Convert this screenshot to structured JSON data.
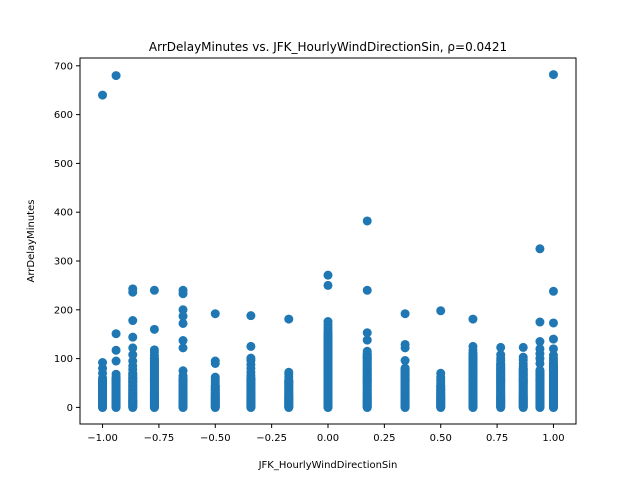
{
  "chart_data": {
    "type": "scatter",
    "title": "ArrDelayMinutes vs. JFK_HourlyWindDirectionSin, ρ=0.0421",
    "xlabel": "JFK_HourlyWindDirectionSin",
    "ylabel": "ArrDelayMinutes",
    "xlim": [
      -1.1,
      1.1
    ],
    "ylim": [
      -34,
      716
    ],
    "xticks": [
      -1.0,
      -0.75,
      -0.5,
      -0.25,
      0.0,
      0.25,
      0.5,
      0.75,
      1.0
    ],
    "xtick_labels": [
      "−1.00",
      "−0.75",
      "−0.50",
      "−0.25",
      "0.00",
      "0.25",
      "0.50",
      "0.75",
      "1.00"
    ],
    "yticks": [
      0,
      100,
      200,
      300,
      400,
      500,
      600,
      700
    ],
    "ytick_labels": [
      "0",
      "100",
      "200",
      "300",
      "400",
      "500",
      "600",
      "700"
    ],
    "grid": false,
    "legend": "none",
    "marker_color": "#1f77b4",
    "columns": [
      {
        "x": -1.0,
        "values": [
          0,
          2,
          4,
          6,
          8,
          10,
          12,
          15,
          18,
          21,
          24,
          28,
          32,
          36,
          40,
          45,
          50,
          55,
          60,
          70,
          80,
          92,
          640
        ],
        "dense_max": 55
      },
      {
        "x": -0.94,
        "values": [
          0,
          2,
          4,
          6,
          8,
          10,
          13,
          16,
          19,
          22,
          26,
          30,
          35,
          40,
          45,
          50,
          55,
          62,
          68,
          95,
          117,
          151,
          680
        ],
        "dense_max": 60
      },
      {
        "x": -0.866,
        "values": [
          0,
          2,
          4,
          6,
          8,
          10,
          12,
          15,
          18,
          22,
          26,
          30,
          35,
          40,
          45,
          52,
          60,
          70,
          78,
          85,
          95,
          108,
          122,
          144,
          178,
          236,
          243
        ],
        "dense_max": 70
      },
      {
        "x": -0.77,
        "values": [
          0,
          2,
          4,
          6,
          8,
          10,
          12,
          15,
          18,
          22,
          26,
          30,
          35,
          40,
          45,
          50,
          55,
          62,
          70,
          78,
          86,
          93,
          100,
          106,
          113,
          118,
          160,
          240
        ],
        "dense_max": 100
      },
      {
        "x": -0.643,
        "values": [
          0,
          2,
          4,
          6,
          8,
          10,
          12,
          15,
          18,
          22,
          26,
          30,
          35,
          40,
          45,
          52,
          58,
          65,
          75,
          122,
          137,
          172,
          187,
          200,
          233,
          240
        ],
        "dense_max": 60
      },
      {
        "x": -0.5,
        "values": [
          0,
          2,
          4,
          6,
          8,
          10,
          13,
          16,
          19,
          22,
          26,
          30,
          35,
          40,
          45,
          50,
          56,
          62,
          90,
          95,
          192
        ],
        "dense_max": 45
      },
      {
        "x": -0.342,
        "values": [
          0,
          2,
          4,
          6,
          8,
          10,
          13,
          16,
          20,
          25,
          30,
          35,
          42,
          50,
          58,
          65,
          72,
          80,
          88,
          96,
          101,
          125,
          188
        ],
        "dense_max": 60
      },
      {
        "x": -0.174,
        "values": [
          0,
          2,
          4,
          6,
          8,
          10,
          13,
          16,
          19,
          22,
          26,
          30,
          35,
          40,
          45,
          50,
          55,
          62,
          68,
          72,
          181
        ],
        "dense_max": 55
      },
      {
        "x": 0.0,
        "values": [
          0,
          2,
          4,
          6,
          8,
          10,
          12,
          15,
          18,
          22,
          26,
          30,
          35,
          40,
          45,
          50,
          55,
          60,
          65,
          70,
          75,
          80,
          85,
          90,
          95,
          100,
          105,
          110,
          115,
          120,
          125,
          130,
          135,
          140,
          145,
          150,
          155,
          160,
          165,
          170,
          176,
          250,
          271
        ],
        "dense_max": 150
      },
      {
        "x": 0.174,
        "values": [
          0,
          2,
          4,
          6,
          8,
          10,
          12,
          15,
          18,
          22,
          26,
          30,
          35,
          40,
          45,
          50,
          55,
          60,
          65,
          70,
          75,
          80,
          85,
          90,
          95,
          100,
          105,
          110,
          115,
          138,
          153,
          240,
          382
        ],
        "dense_max": 110
      },
      {
        "x": 0.342,
        "values": [
          0,
          2,
          4,
          6,
          8,
          10,
          12,
          15,
          18,
          22,
          26,
          30,
          35,
          40,
          45,
          50,
          55,
          60,
          65,
          70,
          75,
          80,
          96,
          122,
          129,
          192
        ],
        "dense_max": 80
      },
      {
        "x": 0.5,
        "values": [
          0,
          2,
          4,
          6,
          8,
          10,
          13,
          16,
          19,
          22,
          26,
          30,
          35,
          40,
          45,
          50,
          56,
          62,
          70,
          198
        ],
        "dense_max": 45
      },
      {
        "x": 0.643,
        "values": [
          0,
          2,
          4,
          6,
          8,
          10,
          12,
          15,
          18,
          22,
          26,
          30,
          35,
          40,
          45,
          50,
          55,
          60,
          65,
          70,
          75,
          80,
          85,
          90,
          95,
          100,
          110,
          117,
          125,
          181
        ],
        "dense_max": 110
      },
      {
        "x": 0.766,
        "values": [
          0,
          2,
          4,
          6,
          8,
          10,
          13,
          16,
          19,
          22,
          26,
          30,
          35,
          40,
          45,
          50,
          55,
          60,
          65,
          70,
          75,
          80,
          85,
          90,
          95,
          100,
          108,
          123
        ],
        "dense_max": 90
      },
      {
        "x": 0.866,
        "values": [
          0,
          2,
          4,
          6,
          8,
          10,
          13,
          16,
          19,
          22,
          26,
          30,
          35,
          40,
          45,
          50,
          55,
          60,
          65,
          70,
          75,
          80,
          85,
          90,
          97,
          103,
          123
        ],
        "dense_max": 80
      },
      {
        "x": 0.94,
        "values": [
          0,
          2,
          4,
          6,
          8,
          10,
          12,
          15,
          18,
          22,
          26,
          30,
          35,
          40,
          45,
          50,
          55,
          60,
          65,
          70,
          76,
          90,
          100,
          110,
          120,
          135,
          175,
          325
        ],
        "dense_max": 75
      },
      {
        "x": 1.0,
        "values": [
          0,
          2,
          4,
          6,
          8,
          10,
          12,
          15,
          18,
          22,
          26,
          30,
          35,
          40,
          45,
          50,
          55,
          60,
          65,
          70,
          75,
          80,
          85,
          90,
          95,
          100,
          107,
          120,
          140,
          173,
          238,
          682
        ],
        "dense_max": 90
      }
    ]
  }
}
